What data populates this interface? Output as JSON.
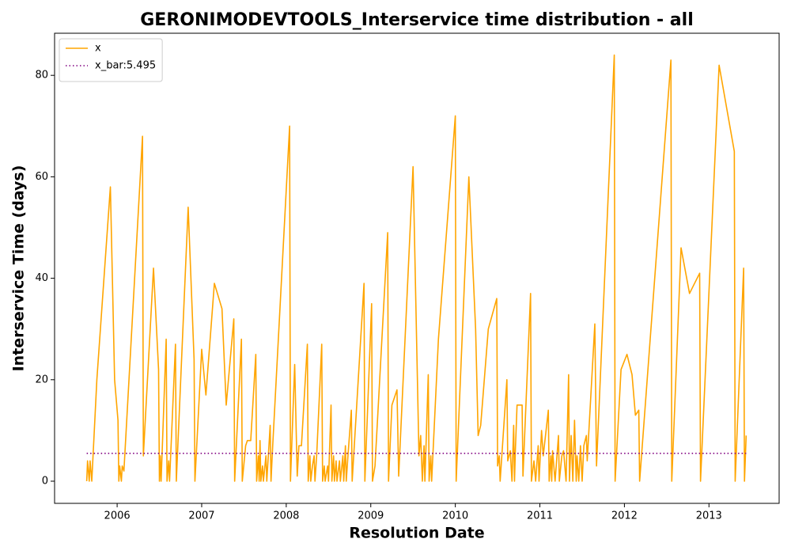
{
  "chart_data": {
    "type": "line",
    "title": "GERONIMODEVTOOLS_Interservice time distribution - all",
    "xlabel": "Resolution Date",
    "ylabel": "Interservice Time (days)",
    "xlim": [
      2005.26,
      2013.83
    ],
    "ylim": [
      -4.37,
      88.3
    ],
    "xticks": [
      2006,
      2007,
      2008,
      2009,
      2010,
      2011,
      2012,
      2013
    ],
    "yticks": [
      0,
      20,
      40,
      60,
      80
    ],
    "legend": "upper left",
    "series": [
      {
        "name": "x",
        "color": "#ffa500",
        "style": "solid",
        "x": [
          2005.64,
          2005.65,
          2005.67,
          2005.68,
          2005.7,
          2005.76,
          2005.92,
          2005.97,
          2006.01,
          2006.02,
          2006.03,
          2006.05,
          2006.06,
          2006.08,
          2006.3,
          2006.31,
          2006.43,
          2006.49,
          2006.5,
          2006.51,
          2006.52,
          2006.58,
          2006.59,
          2006.61,
          2006.62,
          2006.69,
          2006.7,
          2006.84,
          2006.91,
          2006.92,
          2007.0,
          2007.05,
          2007.15,
          2007.24,
          2007.29,
          2007.38,
          2007.39,
          2007.47,
          2007.48,
          2007.52,
          2007.54,
          2007.58,
          2007.64,
          2007.65,
          2007.67,
          2007.68,
          2007.69,
          2007.7,
          2007.72,
          2007.73,
          2007.76,
          2007.77,
          2007.81,
          2007.82,
          2007.84,
          2008.04,
          2008.05,
          2008.1,
          2008.13,
          2008.15,
          2008.18,
          2008.25,
          2008.26,
          2008.28,
          2008.29,
          2008.31,
          2008.33,
          2008.34,
          2008.36,
          2008.42,
          2008.43,
          2008.45,
          2008.46,
          2008.49,
          2008.5,
          2008.53,
          2008.54,
          2008.56,
          2008.57,
          2008.59,
          2008.6,
          2008.63,
          2008.64,
          2008.67,
          2008.68,
          2008.7,
          2008.71,
          2008.73,
          2008.77,
          2008.78,
          2008.92,
          2008.93,
          2009.01,
          2009.02,
          2009.05,
          2009.2,
          2009.21,
          2009.25,
          2009.31,
          2009.33,
          2009.5,
          2009.57,
          2009.59,
          2009.61,
          2009.63,
          2009.64,
          2009.68,
          2009.69,
          2009.71,
          2009.72,
          2009.8,
          2010.0,
          2010.01,
          2010.16,
          2010.24,
          2010.27,
          2010.3,
          2010.39,
          2010.49,
          2010.5,
          2010.52,
          2010.53,
          2010.61,
          2010.62,
          2010.65,
          2010.67,
          2010.69,
          2010.7,
          2010.71,
          2010.73,
          2010.79,
          2010.8,
          2010.89,
          2010.9,
          2010.93,
          2010.95,
          2010.98,
          2010.99,
          2011.02,
          2011.04,
          2011.1,
          2011.11,
          2011.13,
          2011.14,
          2011.15,
          2011.18,
          2011.22,
          2011.23,
          2011.26,
          2011.28,
          2011.31,
          2011.34,
          2011.35,
          2011.37,
          2011.39,
          2011.41,
          2011.43,
          2011.44,
          2011.46,
          2011.48,
          2011.5,
          2011.52,
          2011.55,
          2011.56,
          2011.65,
          2011.67,
          2011.88,
          2011.89,
          2011.96,
          2012.03,
          2012.09,
          2012.13,
          2012.17,
          2012.18,
          2012.55,
          2012.56,
          2012.67,
          2012.77,
          2012.89,
          2012.9,
          2013.12,
          2013.3,
          2013.31,
          2013.41,
          2013.42,
          2013.44
        ],
        "values": [
          0,
          4,
          0,
          4,
          0,
          20,
          58,
          20,
          12,
          0,
          3,
          0,
          3,
          2,
          68,
          5,
          42,
          22,
          0,
          5,
          0,
          28,
          0,
          4,
          0,
          27,
          0,
          54,
          24,
          0,
          26,
          17,
          39,
          34,
          15,
          32,
          0,
          28,
          0,
          7,
          8,
          8,
          25,
          0,
          5,
          0,
          8,
          0,
          3,
          0,
          5,
          0,
          11,
          0,
          7,
          70,
          0,
          23,
          1,
          7,
          7,
          27,
          0,
          5,
          0,
          3,
          5,
          0,
          5,
          27,
          0,
          3,
          0,
          3,
          0,
          15,
          0,
          5,
          0,
          4,
          0,
          4,
          0,
          5,
          0,
          7,
          0,
          5,
          14,
          0,
          39,
          0,
          35,
          0,
          3,
          49,
          0,
          15,
          18,
          1,
          62,
          5,
          9,
          0,
          7,
          0,
          21,
          0,
          5,
          0,
          28,
          72,
          0,
          60,
          30,
          9,
          11,
          30,
          36,
          3,
          5,
          0,
          20,
          4,
          6,
          0,
          11,
          0,
          6,
          15,
          15,
          1,
          37,
          0,
          4,
          0,
          7,
          0,
          10,
          5,
          14,
          0,
          5,
          0,
          6,
          0,
          9,
          0,
          5,
          6,
          0,
          21,
          0,
          9,
          0,
          12,
          0,
          5,
          0,
          7,
          0,
          7,
          9,
          4,
          31,
          3,
          84,
          0,
          22,
          25,
          21,
          13,
          14,
          0,
          83,
          0,
          46,
          37,
          41,
          0,
          82,
          65,
          0,
          42,
          0,
          9
        ]
      },
      {
        "name": "x_bar:5.495",
        "color": "#800080",
        "style": "dotted",
        "x": [
          2005.64,
          2013.44
        ],
        "values": [
          5.495,
          5.495
        ]
      }
    ]
  }
}
